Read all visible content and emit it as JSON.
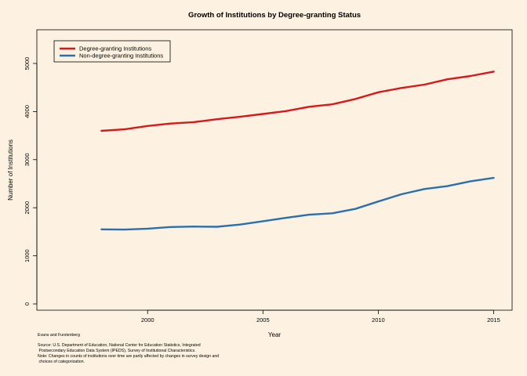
{
  "chart_data": {
    "type": "line",
    "title": "Growth of Institutions by Degree-granting Status",
    "xlabel": "Year",
    "ylabel": "Number of Institutions",
    "xlim": [
      1995.2,
      2015.8
    ],
    "ylim": [
      -130,
      5700
    ],
    "xticks": [
      2000,
      2005,
      2010,
      2015
    ],
    "yticks": [
      0,
      1000,
      2000,
      3000,
      4000,
      5000
    ],
    "x": [
      1998,
      1999,
      2000,
      2001,
      2002,
      2003,
      2004,
      2005,
      2006,
      2007,
      2008,
      2009,
      2010,
      2011,
      2012,
      2013,
      2014,
      2015
    ],
    "series": [
      {
        "name": "Degree-granting Institutions",
        "color": "#d7191c",
        "values": [
          3600,
          3630,
          3700,
          3750,
          3780,
          3840,
          3890,
          3950,
          4010,
          4100,
          4150,
          4260,
          4400,
          4490,
          4560,
          4670,
          4740,
          4830
        ]
      },
      {
        "name": "Non-degree-granting Institutions",
        "color": "#2c6fb0",
        "values": [
          1550,
          1545,
          1565,
          1600,
          1610,
          1605,
          1650,
          1720,
          1790,
          1855,
          1885,
          1975,
          2130,
          2280,
          2390,
          2450,
          2550,
          2620
        ]
      }
    ],
    "grid": false,
    "legend_position": "top-left",
    "credit": "Evans and Furstenberg",
    "source_lines": [
      "Source: U.S. Department of Education, National Center for Education Statistics, Integrated",
      " Postsecondary Education Data System (IPEDS), Survey of Institutional Characteristics.",
      "Note: Changes in counts of institutions over time are partly affected by changes in survey design and",
      " choices of categorization."
    ]
  }
}
